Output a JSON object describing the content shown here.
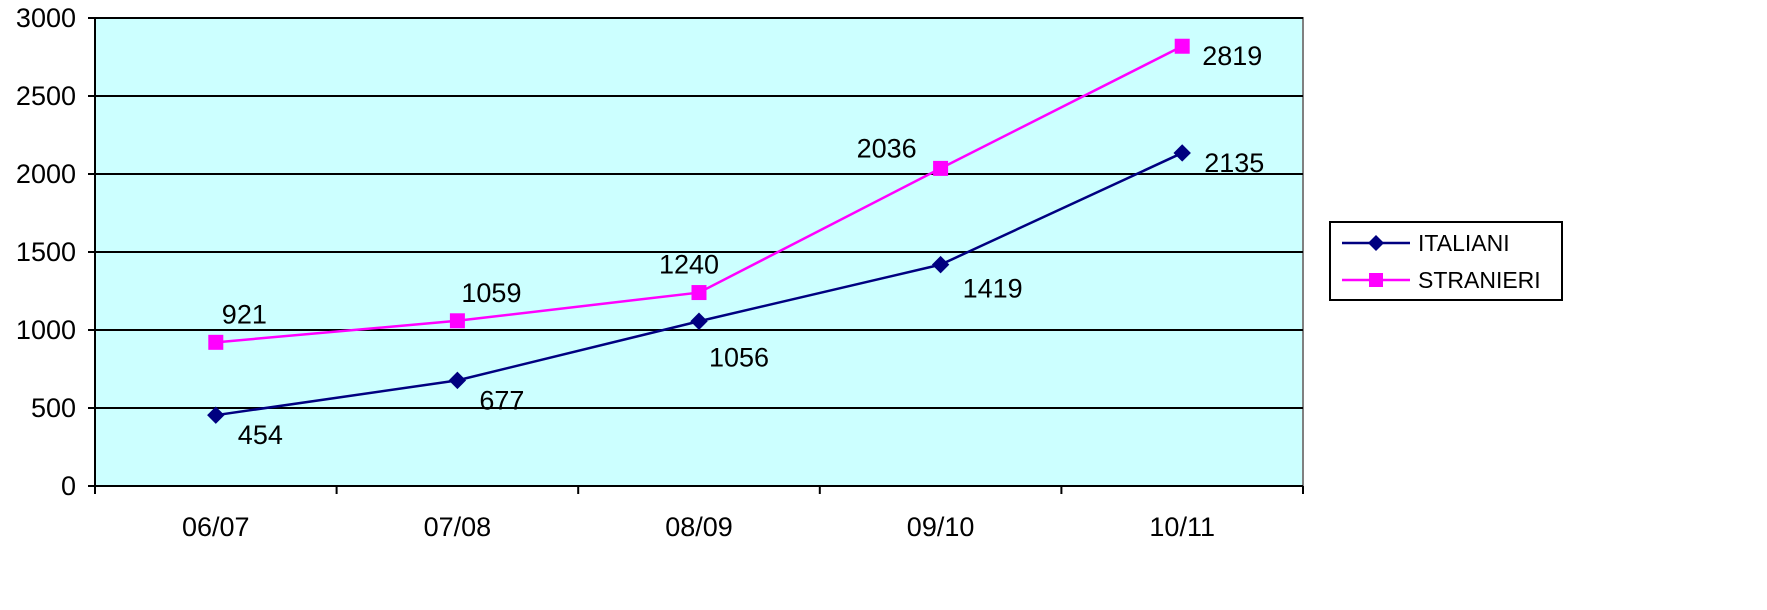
{
  "chart_data": {
    "type": "line",
    "categories": [
      "06/07",
      "07/08",
      "08/09",
      "09/10",
      "10/11"
    ],
    "ylim": [
      0,
      3000
    ],
    "yticks": [
      0,
      500,
      1000,
      1500,
      2000,
      2500,
      3000
    ],
    "grid": true,
    "legend_position": "right",
    "plot_background": "#ccffff",
    "series": [
      {
        "name": "ITALIANI",
        "color": "#000080",
        "marker": "diamond",
        "values": [
          454,
          677,
          1056,
          1419,
          2135
        ]
      },
      {
        "name": "STRANIERI",
        "color": "#ff00ff",
        "marker": "square",
        "values": [
          921,
          1059,
          1240,
          2036,
          2819
        ]
      }
    ]
  }
}
